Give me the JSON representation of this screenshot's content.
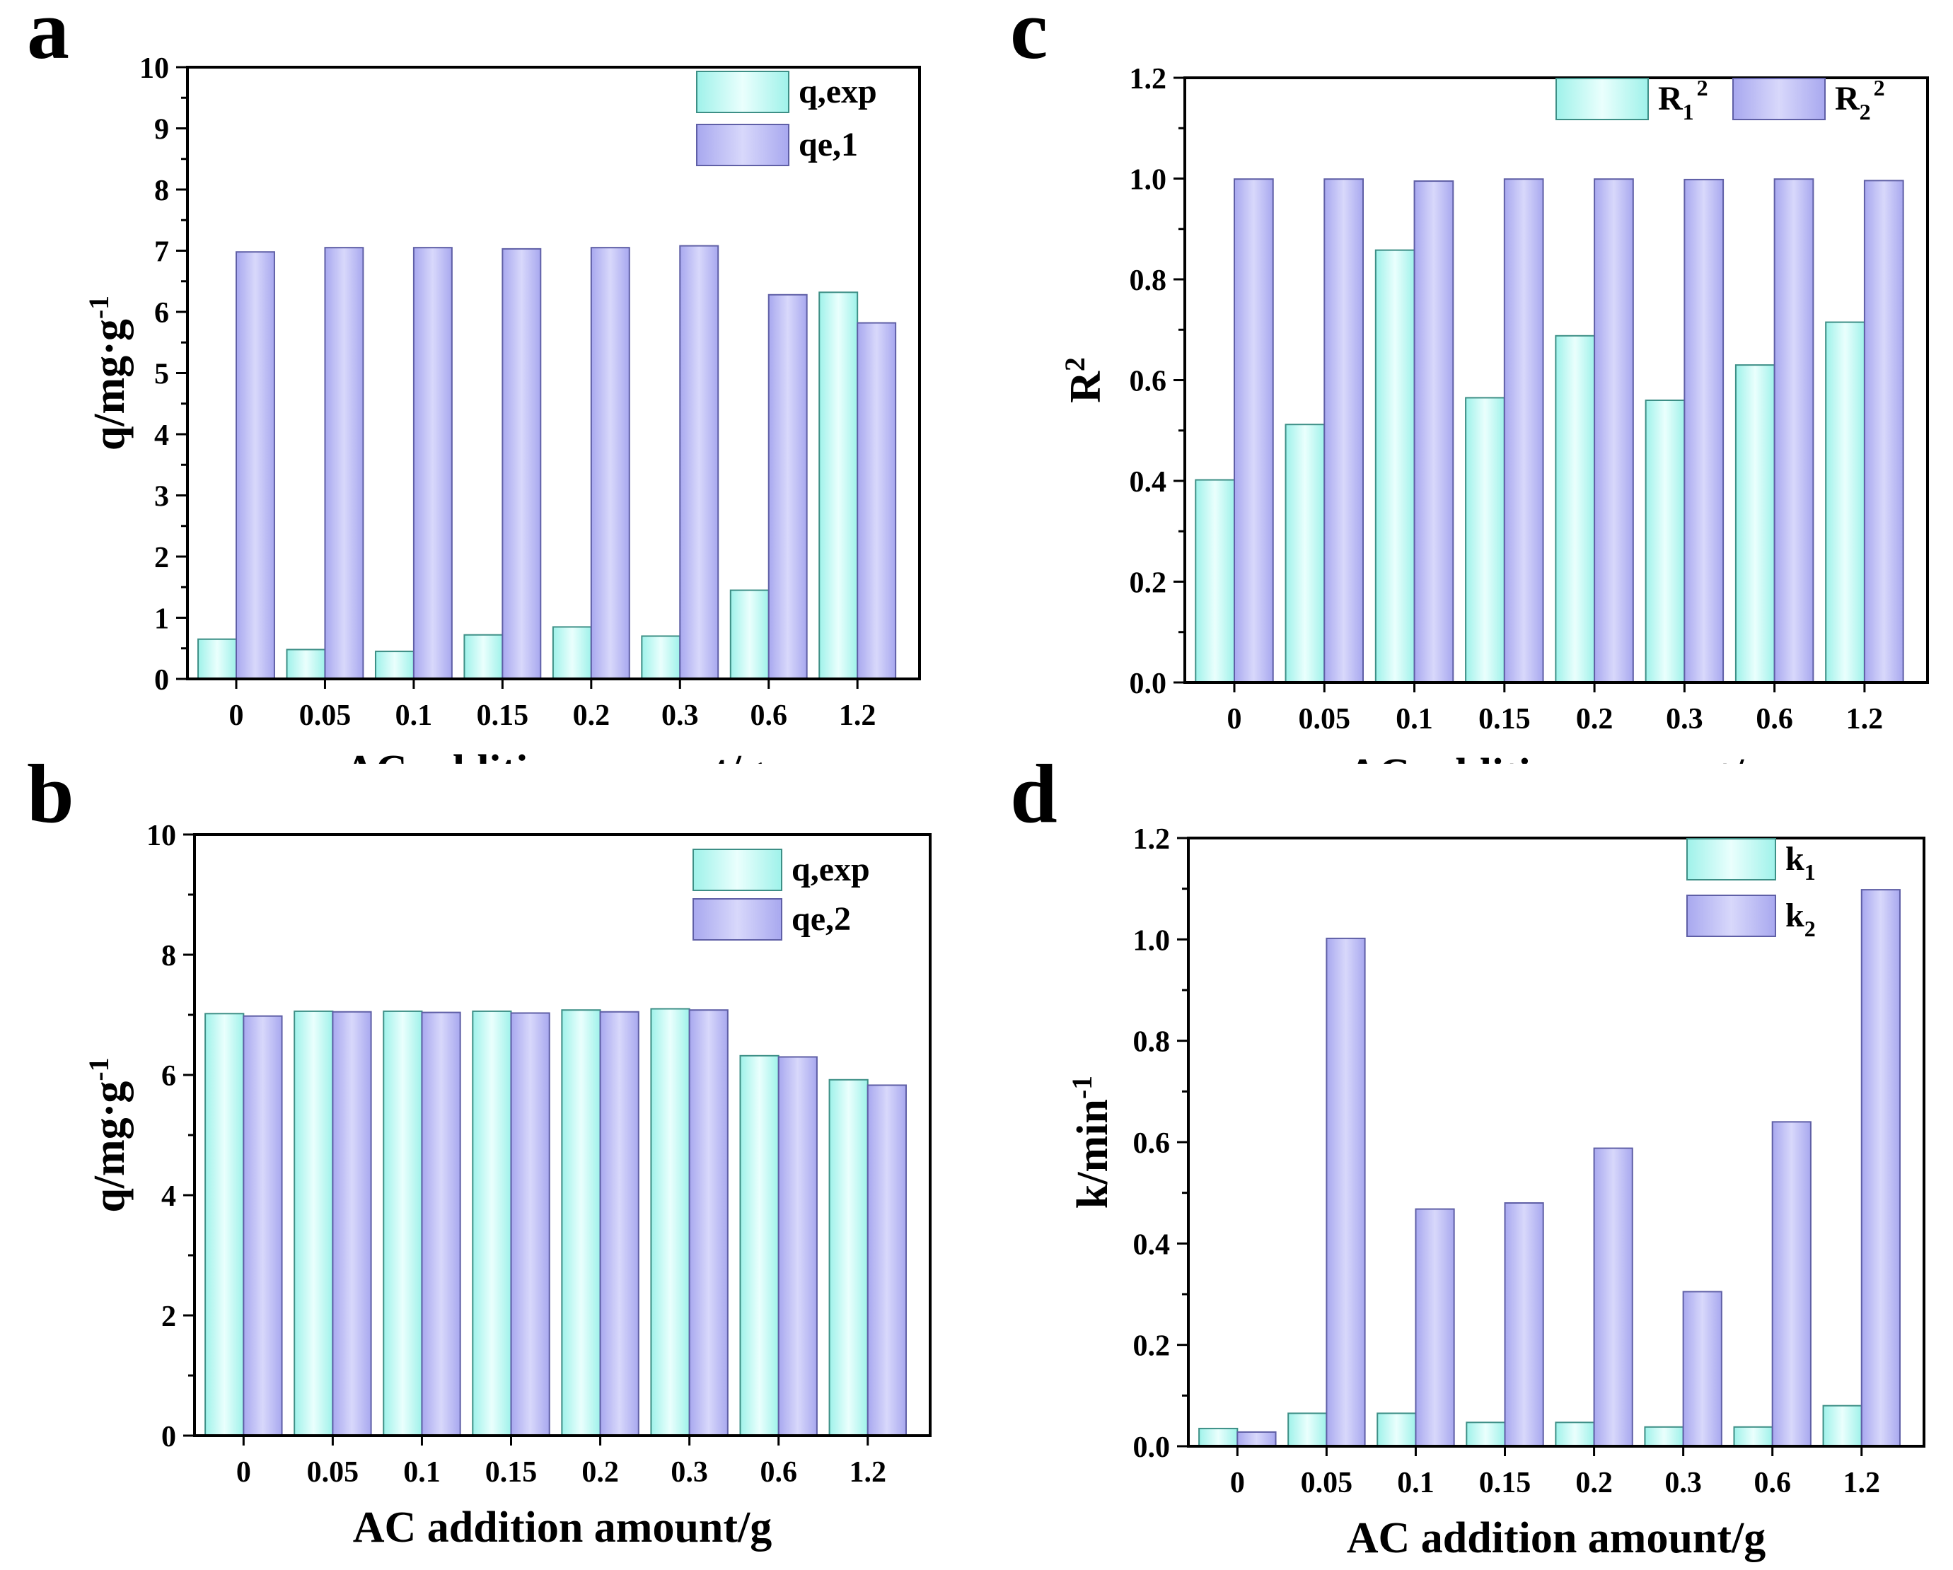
{
  "chart_data": [
    {
      "panel": "a",
      "type": "bar",
      "categories": [
        "0",
        "0.05",
        "0.1",
        "0.15",
        "0.2",
        "0.3",
        "0.6",
        "1.2"
      ],
      "series": [
        {
          "name": "q,exp",
          "values": [
            0.65,
            0.48,
            0.45,
            0.72,
            0.85,
            0.7,
            1.45,
            6.32
          ]
        },
        {
          "name": "qe,1",
          "values": [
            6.98,
            7.05,
            7.05,
            7.03,
            7.05,
            7.08,
            6.28,
            5.82
          ]
        }
      ],
      "xlabel": "AC addition amount/g",
      "ylabel": {
        "base": "q/mg·g",
        "sup": "-1"
      },
      "ylim": [
        0,
        10
      ],
      "yticks": [
        "0",
        "1",
        "2",
        "3",
        "4",
        "5",
        "6",
        "7",
        "8",
        "9",
        "10"
      ],
      "legend": "top-right"
    },
    {
      "panel": "b",
      "type": "bar",
      "categories": [
        "0",
        "0.05",
        "0.1",
        "0.15",
        "0.2",
        "0.3",
        "0.6",
        "1.2"
      ],
      "series": [
        {
          "name": "q,exp",
          "values": [
            7.02,
            7.06,
            7.06,
            7.06,
            7.08,
            7.1,
            6.32,
            5.92
          ]
        },
        {
          "name": "qe,2",
          "values": [
            6.98,
            7.05,
            7.04,
            7.03,
            7.05,
            7.08,
            6.3,
            5.83
          ]
        }
      ],
      "xlabel": "AC addition amount/g",
      "ylabel": {
        "base": "q/mg·g",
        "sup": "-1"
      },
      "ylim": [
        0,
        10
      ],
      "yticks": [
        "0",
        "2",
        "4",
        "6",
        "8",
        "10"
      ],
      "legend": "top-right"
    },
    {
      "panel": "c",
      "type": "bar",
      "categories": [
        "0",
        "0.05",
        "0.1",
        "0.15",
        "0.2",
        "0.3",
        "0.6",
        "1.2"
      ],
      "series": [
        {
          "name": "R",
          "sub": "1",
          "sup": "2",
          "values": [
            0.402,
            0.512,
            0.858,
            0.565,
            0.688,
            0.56,
            0.63,
            0.715
          ]
        },
        {
          "name": "R",
          "sub": "2",
          "sup": "2",
          "values": [
            0.999,
            0.999,
            0.995,
            0.999,
            0.999,
            0.998,
            0.999,
            0.996
          ]
        }
      ],
      "xlabel": "AC addition amount/g",
      "ylabel": {
        "base": "R",
        "sup": "2"
      },
      "ylim": [
        0,
        1.2
      ],
      "yticks": [
        "0.0",
        "0.2",
        "0.4",
        "0.6",
        "0.8",
        "1.0",
        "1.2"
      ],
      "legend": "top-right"
    },
    {
      "panel": "d",
      "type": "bar",
      "categories": [
        "0",
        "0.05",
        "0.1",
        "0.15",
        "0.2",
        "0.3",
        "0.6",
        "1.2"
      ],
      "series": [
        {
          "name": "k",
          "sub": "1",
          "values": [
            0.035,
            0.065,
            0.065,
            0.047,
            0.047,
            0.038,
            0.038,
            0.08
          ]
        },
        {
          "name": "k",
          "sub": "2",
          "values": [
            0.028,
            1.002,
            0.468,
            0.48,
            0.588,
            0.305,
            0.64,
            1.098
          ]
        }
      ],
      "xlabel": "AC addition amount/g",
      "ylabel": {
        "base": "k/min",
        "sup": "-1"
      },
      "ylim": [
        0,
        1.2
      ],
      "yticks": [
        "0.0",
        "0.2",
        "0.4",
        "0.6",
        "0.8",
        "1.0",
        "1.2"
      ],
      "legend": "top-right"
    }
  ],
  "colors": {
    "series1_fill": "#9ff2ea",
    "series1_highlight": "#eafffd",
    "series1_edge": "#3d8f86",
    "series2_fill": "#a8a8ef",
    "series2_highlight": "#d8d8fb",
    "series2_edge": "#5f5fa6",
    "axis": "#000000"
  }
}
